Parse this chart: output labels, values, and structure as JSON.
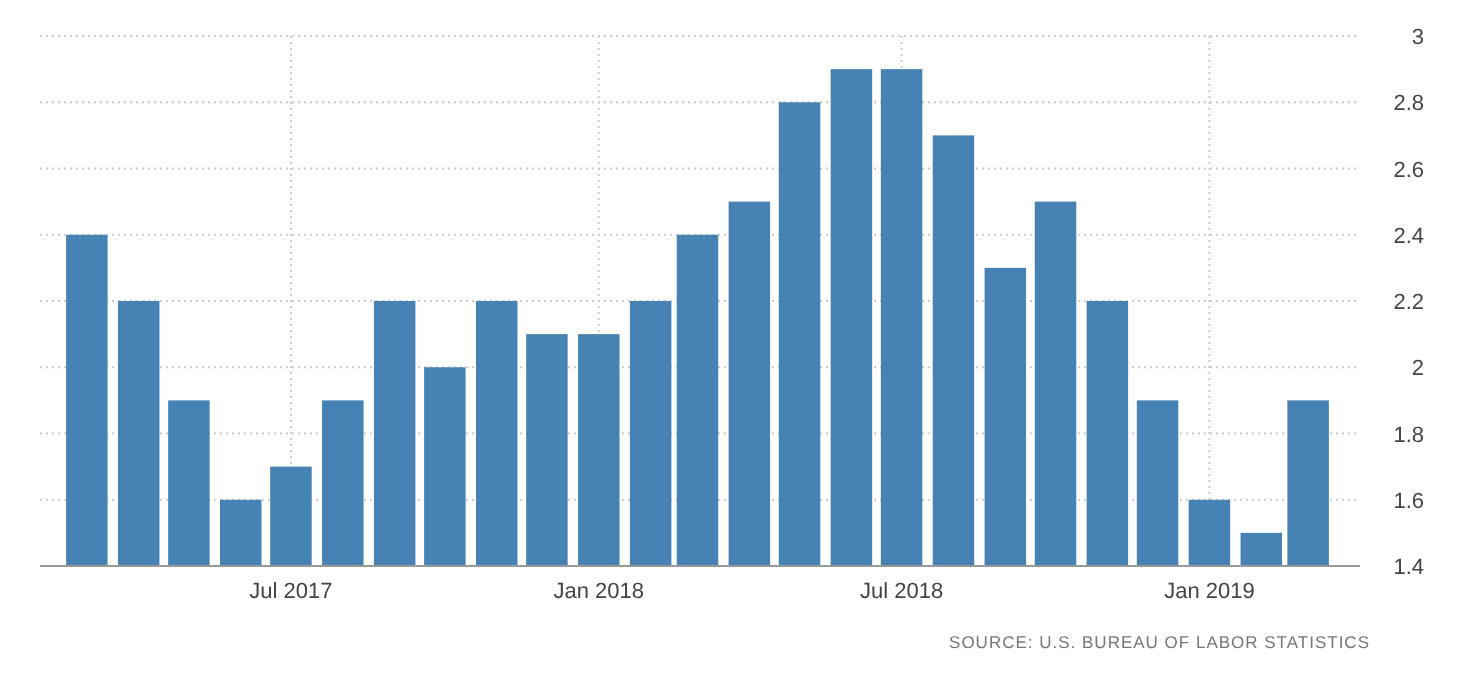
{
  "chart_data": {
    "type": "bar",
    "x": [
      "2017-03",
      "2017-04",
      "2017-05",
      "2017-06",
      "2017-07",
      "2017-08",
      "2017-09",
      "2017-10",
      "2017-11",
      "2017-12",
      "2018-01",
      "2018-02",
      "2018-03",
      "2018-04",
      "2018-05",
      "2018-06",
      "2018-07",
      "2018-08",
      "2018-09",
      "2018-10",
      "2018-11",
      "2018-12",
      "2019-01",
      "2019-02",
      "2019-03"
    ],
    "values": [
      2.4,
      2.2,
      1.9,
      1.6,
      1.7,
      1.9,
      2.2,
      2.0,
      2.2,
      2.1,
      2.1,
      2.2,
      2.4,
      2.5,
      2.8,
      2.9,
      2.9,
      2.7,
      2.3,
      2.5,
      2.2,
      1.9,
      1.6,
      1.5,
      1.9
    ],
    "color": "#4682b4",
    "xlim": [
      "2017-02",
      "2019-04"
    ],
    "xticks": [
      {
        "value": "2017-07",
        "label": "Jul 2017"
      },
      {
        "value": "2018-01",
        "label": "Jan 2018"
      },
      {
        "value": "2018-07",
        "label": "Jul 2018"
      },
      {
        "value": "2019-01",
        "label": "Jan 2019"
      }
    ],
    "ylim": [
      1.4,
      3
    ],
    "yticks": [
      1.4,
      1.6,
      1.8,
      2,
      2.2,
      2.4,
      2.6,
      2.8,
      3
    ],
    "grid": true,
    "annotations": [
      "SOURCE: U.S. BUREAU OF LABOR STATISTICS"
    ]
  }
}
